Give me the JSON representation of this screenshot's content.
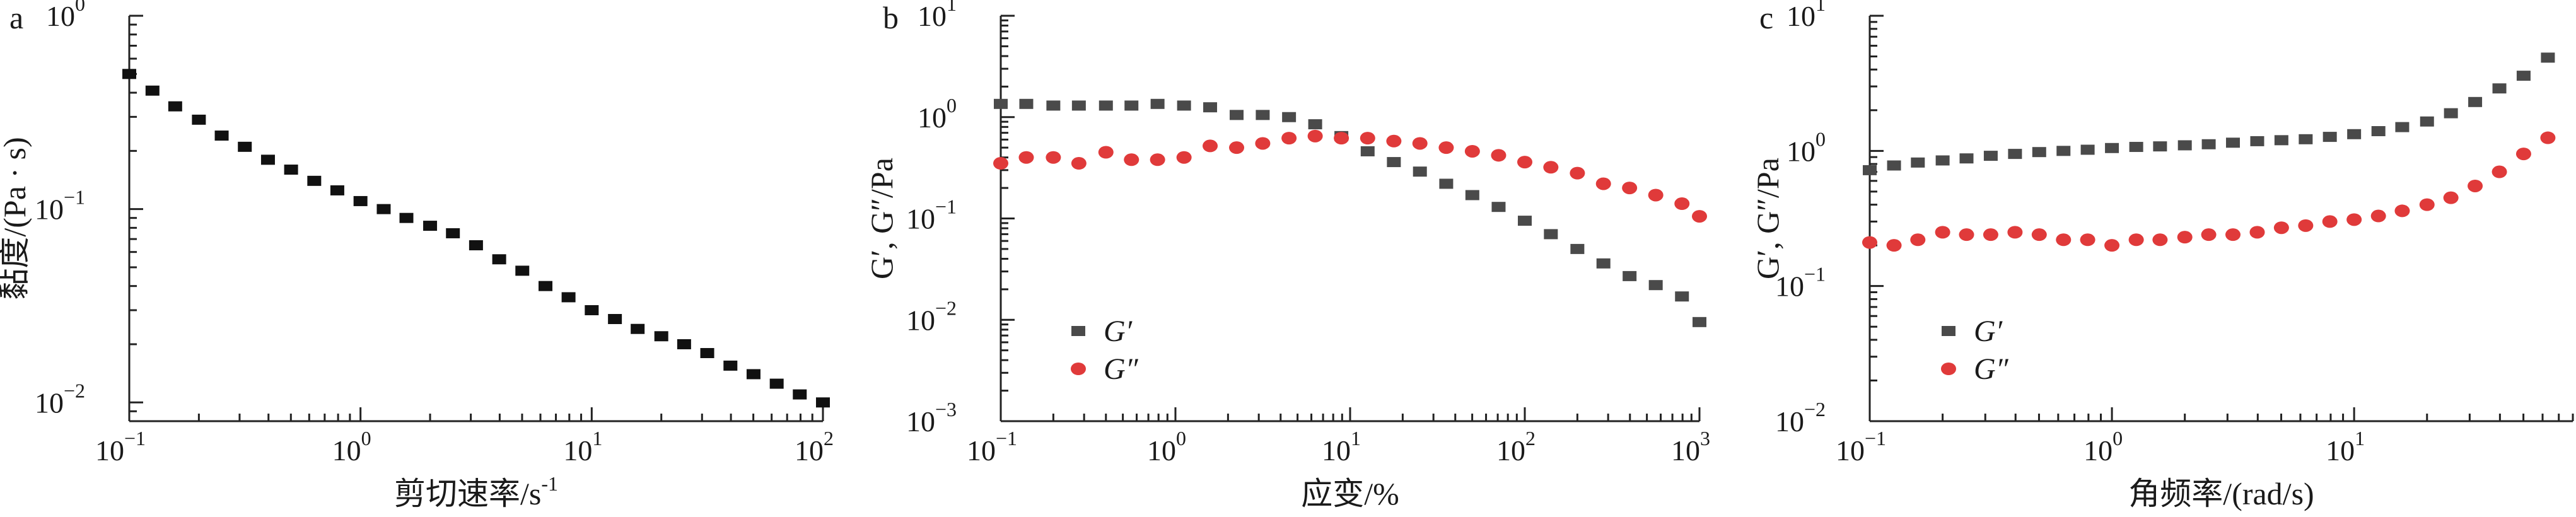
{
  "chart_data": [
    {
      "panel": "a",
      "type": "scatter",
      "xscale": "log",
      "yscale": "log",
      "xlim": [
        0.1,
        100
      ],
      "ylim": [
        0.008,
        1
      ],
      "xticks": [
        {
          "base": "10",
          "exp": "−1"
        },
        {
          "base": "10",
          "exp": "0"
        },
        {
          "base": "10",
          "exp": "1"
        },
        {
          "base": "10",
          "exp": "2"
        }
      ],
      "yticks": [
        {
          "base": "10",
          "exp": "0"
        },
        {
          "base": "10",
          "exp": "−1"
        },
        {
          "base": "10",
          "exp": "−2"
        }
      ],
      "xlabel": {
        "text": "剪切速率/s",
        "sup": "-1"
      },
      "ylabel": "黏度/(Pa · s)",
      "series": [
        {
          "name": "viscosity",
          "color": "#111111",
          "marker": "square",
          "x": [
            0.1,
            0.126,
            0.158,
            0.2,
            0.251,
            0.316,
            0.398,
            0.501,
            0.631,
            0.794,
            1.0,
            1.26,
            1.58,
            2.0,
            2.51,
            3.16,
            3.98,
            5.01,
            6.31,
            7.94,
            10.0,
            12.6,
            15.8,
            20.0,
            25.1,
            31.6,
            39.8,
            50.1,
            63.1,
            79.4,
            100
          ],
          "y": [
            0.5,
            0.41,
            0.34,
            0.29,
            0.24,
            0.21,
            0.18,
            0.16,
            0.14,
            0.125,
            0.11,
            0.1,
            0.09,
            0.082,
            0.075,
            0.065,
            0.055,
            0.048,
            0.04,
            0.035,
            0.03,
            0.027,
            0.024,
            0.022,
            0.02,
            0.018,
            0.0155,
            0.014,
            0.0125,
            0.011,
            0.01
          ]
        }
      ]
    },
    {
      "panel": "b",
      "type": "scatter",
      "xscale": "log",
      "yscale": "log",
      "xlim": [
        0.1,
        1000
      ],
      "ylim": [
        0.001,
        10
      ],
      "xticks": [
        {
          "base": "10",
          "exp": "−1"
        },
        {
          "base": "10",
          "exp": "0"
        },
        {
          "base": "10",
          "exp": "1"
        },
        {
          "base": "10",
          "exp": "2"
        },
        {
          "base": "10",
          "exp": "3"
        }
      ],
      "yticks": [
        {
          "base": "10",
          "exp": "1"
        },
        {
          "base": "10",
          "exp": "0"
        },
        {
          "base": "10",
          "exp": "−1"
        },
        {
          "base": "10",
          "exp": "−2"
        },
        {
          "base": "10",
          "exp": "−3"
        }
      ],
      "xlabel": {
        "text": "应变/%",
        "sup": ""
      },
      "ylabel": "G′, G″/Pa",
      "legend": [
        "G′",
        "G″"
      ],
      "series": [
        {
          "name": "G′",
          "color": "#4a4a4a",
          "marker": "square",
          "x": [
            0.1,
            0.14,
            0.2,
            0.28,
            0.4,
            0.56,
            0.79,
            1.12,
            1.58,
            2.24,
            3.16,
            4.47,
            6.31,
            8.91,
            12.6,
            17.8,
            25.1,
            35.5,
            50.1,
            70.8,
            100,
            141,
            200,
            282,
            398,
            562,
            794,
            1000
          ],
          "y": [
            1.35,
            1.35,
            1.3,
            1.3,
            1.3,
            1.3,
            1.35,
            1.3,
            1.25,
            1.05,
            1.05,
            1.0,
            0.85,
            0.65,
            0.46,
            0.36,
            0.29,
            0.22,
            0.17,
            0.13,
            0.095,
            0.07,
            0.05,
            0.036,
            0.027,
            0.022,
            0.017,
            0.0095
          ]
        },
        {
          "name": "G″",
          "color": "#e03a3a",
          "marker": "circle",
          "x": [
            0.1,
            0.14,
            0.2,
            0.28,
            0.4,
            0.56,
            0.79,
            1.12,
            1.58,
            2.24,
            3.16,
            4.47,
            6.31,
            8.91,
            12.6,
            17.8,
            25.1,
            35.5,
            50.1,
            70.8,
            100,
            141,
            200,
            282,
            398,
            562,
            794,
            1000
          ],
          "y": [
            0.35,
            0.4,
            0.4,
            0.35,
            0.45,
            0.38,
            0.38,
            0.4,
            0.52,
            0.5,
            0.55,
            0.62,
            0.65,
            0.62,
            0.62,
            0.58,
            0.55,
            0.5,
            0.46,
            0.42,
            0.36,
            0.32,
            0.28,
            0.22,
            0.2,
            0.17,
            0.14,
            0.105
          ]
        }
      ]
    },
    {
      "panel": "c",
      "type": "scatter",
      "xscale": "log",
      "yscale": "log",
      "xlim": [
        0.1,
        80
      ],
      "ylim": [
        0.01,
        10
      ],
      "xticks": [
        {
          "base": "10",
          "exp": "−1"
        },
        {
          "base": "10",
          "exp": "0"
        },
        {
          "base": "10",
          "exp": "1"
        }
      ],
      "yticks": [
        {
          "base": "10",
          "exp": "1"
        },
        {
          "base": "10",
          "exp": "0"
        },
        {
          "base": "10",
          "exp": "−1"
        },
        {
          "base": "10",
          "exp": "−2"
        }
      ],
      "xlabel": {
        "text": "角频率/(rad/s)",
        "sup": ""
      },
      "ylabel": "G′, G″/Pa",
      "legend": [
        "G′",
        "G″"
      ],
      "series": [
        {
          "name": "G′",
          "color": "#4a4a4a",
          "marker": "square",
          "x": [
            0.1,
            0.126,
            0.158,
            0.2,
            0.251,
            0.316,
            0.398,
            0.501,
            0.631,
            0.794,
            1.0,
            1.26,
            1.58,
            2.0,
            2.51,
            3.16,
            3.98,
            5.01,
            6.31,
            7.94,
            10.0,
            12.6,
            15.8,
            20.0,
            25.1,
            31.6,
            39.8,
            50.1,
            63.1
          ],
          "y": [
            0.72,
            0.78,
            0.82,
            0.85,
            0.88,
            0.92,
            0.95,
            0.98,
            1.0,
            1.02,
            1.05,
            1.07,
            1.08,
            1.1,
            1.12,
            1.15,
            1.18,
            1.2,
            1.22,
            1.27,
            1.33,
            1.4,
            1.5,
            1.65,
            1.9,
            2.3,
            2.9,
            3.6,
            4.9
          ]
        },
        {
          "name": "G″",
          "color": "#e03a3a",
          "marker": "circle",
          "x": [
            0.1,
            0.126,
            0.158,
            0.2,
            0.251,
            0.316,
            0.398,
            0.501,
            0.631,
            0.794,
            1.0,
            1.26,
            1.58,
            2.0,
            2.51,
            3.16,
            3.98,
            5.01,
            6.31,
            7.94,
            10.0,
            12.6,
            15.8,
            20.0,
            25.1,
            31.6,
            39.8,
            50.1,
            63.1
          ],
          "y": [
            0.21,
            0.2,
            0.22,
            0.25,
            0.24,
            0.24,
            0.25,
            0.24,
            0.22,
            0.22,
            0.2,
            0.22,
            0.22,
            0.23,
            0.24,
            0.24,
            0.25,
            0.27,
            0.28,
            0.3,
            0.31,
            0.33,
            0.36,
            0.4,
            0.45,
            0.55,
            0.7,
            0.95,
            1.25
          ]
        }
      ]
    }
  ]
}
